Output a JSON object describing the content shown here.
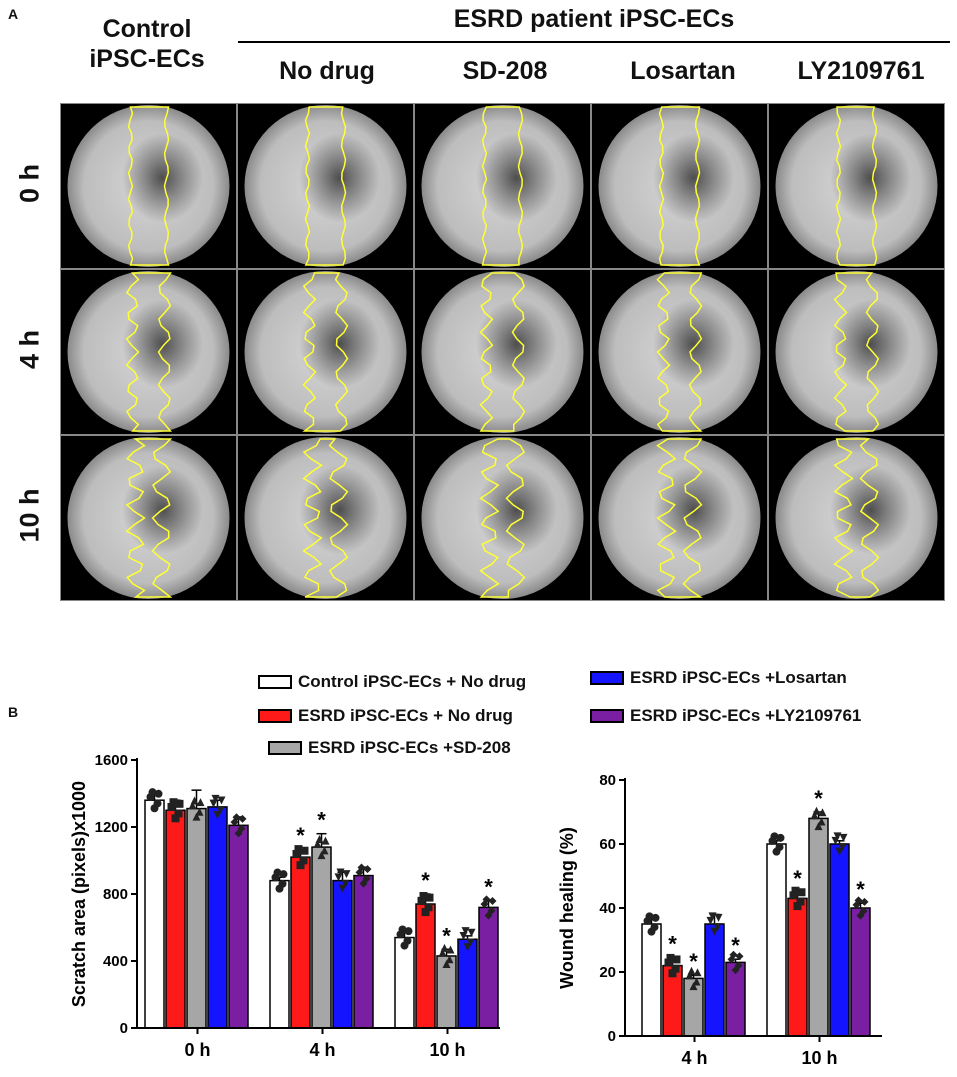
{
  "panels": {
    "a": "A",
    "b": "B"
  },
  "header": {
    "control_line1": "Control",
    "control_line2": "iPSC-ECs",
    "group_title": "ESRD patient iPSC-ECs",
    "columns": [
      "No drug",
      "SD-208",
      "Losartan",
      "LY2109761"
    ]
  },
  "rows": [
    "0 h",
    "4 h",
    "10 h"
  ],
  "colors": {
    "control": "#ffffff",
    "no_drug": "#ff1a1a",
    "sd208": "#a6a6a6",
    "losartan": "#1414ff",
    "ly": "#7a1fa2",
    "outline": "#ffff33"
  },
  "legend": [
    {
      "key": "control",
      "label": "Control  iPSC-ECs  + No drug"
    },
    {
      "key": "no_drug",
      "label": "ESRD  iPSC-ECs  + No drug"
    },
    {
      "key": "sd208",
      "label": "ESRD  iPSC-ECs  +SD-208"
    },
    {
      "key": "losartan",
      "label": "ESRD  iPSC-ECs  +Losartan"
    },
    {
      "key": "ly",
      "label": "ESRD  iPSC-ECs  +LY2109761"
    }
  ],
  "chart_data": [
    {
      "type": "bar",
      "ylabel": "Scratch area (pixels)x1000",
      "ylim": [
        0,
        1600
      ],
      "yticks": [
        0,
        400,
        800,
        1200,
        1600
      ],
      "categories": [
        "0 h",
        "4 h",
        "10 h"
      ],
      "series": [
        {
          "name": "Control iPSC-ECs + No drug",
          "key": "control",
          "values": [
            1360,
            880,
            540
          ],
          "errors": [
            40,
            20,
            40
          ],
          "marker": "circle"
        },
        {
          "name": "ESRD iPSC-ECs + No drug",
          "key": "no_drug",
          "values": [
            1300,
            1020,
            740
          ],
          "errors": [
            60,
            50,
            60
          ],
          "marker": "square"
        },
        {
          "name": "ESRD iPSC-ECs +SD-208",
          "key": "sd208",
          "values": [
            1310,
            1080,
            430
          ],
          "errors": [
            110,
            80,
            40
          ],
          "marker": "triangle"
        },
        {
          "name": "ESRD iPSC-ECs +Losartan",
          "key": "losartan",
          "values": [
            1320,
            880,
            530
          ],
          "errors": [
            40,
            50,
            20
          ],
          "marker": "triangle-down"
        },
        {
          "name": "ESRD iPSC-ECs +LY2109761",
          "key": "ly",
          "values": [
            1210,
            910,
            720
          ],
          "errors": [
            50,
            50,
            40
          ],
          "marker": "diamond"
        }
      ],
      "significance": [
        [
          0,
          0,
          0,
          0,
          0
        ],
        [
          0,
          1,
          1,
          0,
          0
        ],
        [
          0,
          1,
          1,
          0,
          1
        ]
      ],
      "significance_mark": "*"
    },
    {
      "type": "bar",
      "ylabel": "Wound healing (%)",
      "ylim": [
        0,
        80
      ],
      "yticks": [
        0,
        20,
        40,
        60,
        80
      ],
      "categories": [
        "4 h",
        "10 h"
      ],
      "series": [
        {
          "name": "Control iPSC-ECs + No drug",
          "key": "control",
          "values": [
            35,
            60
          ],
          "errors": [
            1.5,
            1
          ],
          "marker": "circle"
        },
        {
          "name": "ESRD iPSC-ECs + No drug",
          "key": "no_drug",
          "values": [
            22,
            43
          ],
          "errors": [
            2.5,
            2
          ],
          "marker": "square"
        },
        {
          "name": "ESRD iPSC-ECs +SD-208",
          "key": "sd208",
          "values": [
            18,
            68
          ],
          "errors": [
            1,
            2
          ],
          "marker": "triangle"
        },
        {
          "name": "ESRD iPSC-ECs +Losartan",
          "key": "losartan",
          "values": [
            35,
            60
          ],
          "errors": [
            3,
            1
          ],
          "marker": "triangle-down"
        },
        {
          "name": "ESRD iPSC-ECs +LY2109761",
          "key": "ly",
          "values": [
            23,
            40
          ],
          "errors": [
            1,
            1.5
          ],
          "marker": "diamond"
        }
      ],
      "significance": [
        [
          0,
          1,
          1,
          0,
          1
        ],
        [
          0,
          1,
          1,
          0,
          1
        ]
      ],
      "significance_mark": "*"
    }
  ]
}
